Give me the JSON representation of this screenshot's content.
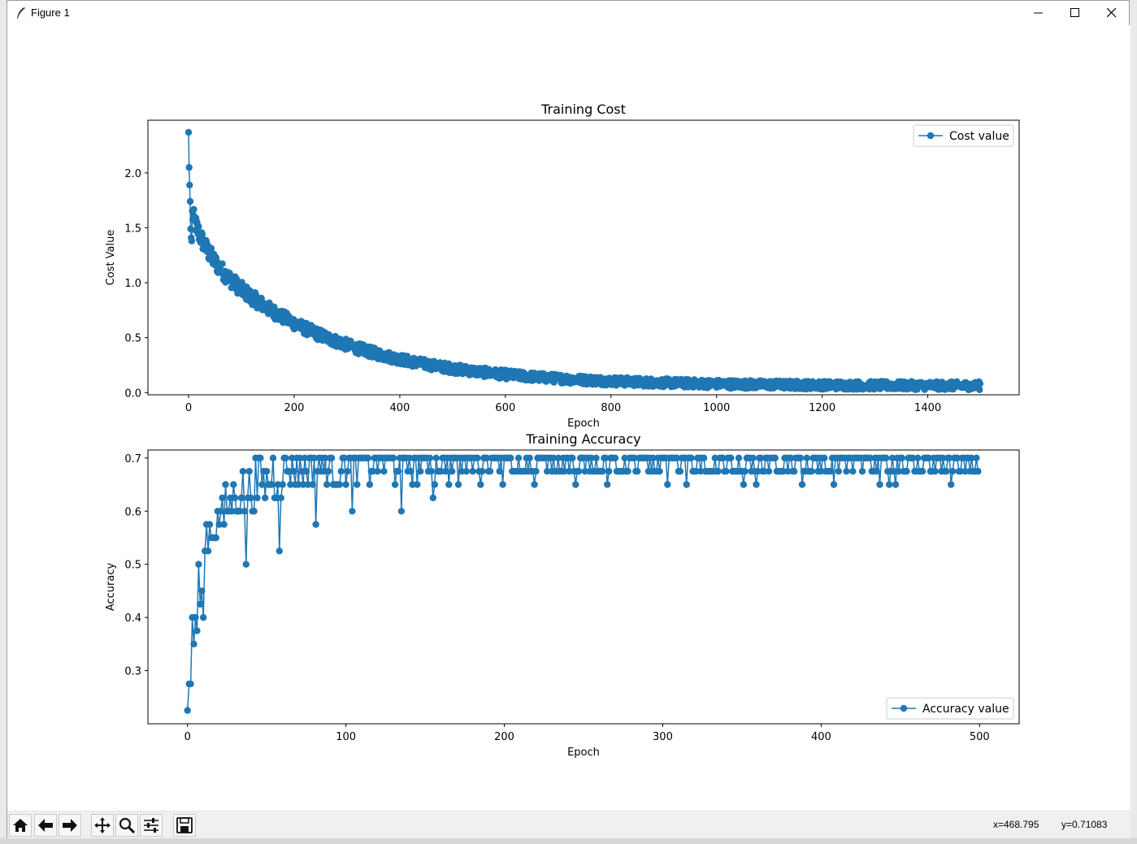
{
  "window": {
    "title": "Figure 1"
  },
  "colors": {
    "series": "#1f77b4",
    "axes": "#000000",
    "background": "#ffffff"
  },
  "chart_data": [
    {
      "type": "line",
      "title": "Training Cost",
      "xlabel": "Epoch",
      "ylabel": "Cost Value",
      "xlim": [
        -77,
        1573
      ],
      "ylim": [
        -0.02,
        2.48
      ],
      "xticks": [
        0,
        200,
        400,
        600,
        800,
        1000,
        1200,
        1400
      ],
      "yticks": [
        0.0,
        0.5,
        1.0,
        1.5,
        2.0
      ],
      "ytick_format": 1,
      "grid": false,
      "legend": "top-right",
      "series": [
        {
          "name": "Cost value",
          "marker": "o",
          "x_range": [
            0,
            1499
          ],
          "start_points": [
            [
              0,
              2.37
            ],
            [
              1,
              2.05
            ],
            [
              2,
              1.89
            ],
            [
              3,
              1.74
            ],
            [
              4,
              1.49
            ],
            [
              5,
              1.41
            ],
            [
              6,
              1.38
            ]
          ],
          "asymptote": 0.06,
          "amplitude": 1.34,
          "decay": 235,
          "noise": 0.035,
          "outliers": [
            [
              117,
              0.83
            ]
          ]
        }
      ]
    },
    {
      "type": "line",
      "title": "Training Accuracy",
      "xlabel": "Epoch",
      "ylabel": "Accuracy",
      "xlim": [
        -25,
        525
      ],
      "ylim": [
        0.2,
        0.715
      ],
      "xticks": [
        0,
        100,
        200,
        300,
        400,
        500
      ],
      "yticks": [
        0.3,
        0.4,
        0.5,
        0.6,
        0.7
      ],
      "ytick_format": 1,
      "grid": false,
      "legend": "bottom-right",
      "series": [
        {
          "name": "Accuracy value",
          "marker": "o",
          "x_range": [
            0,
            499
          ],
          "start_points": [
            [
              0,
              0.225
            ],
            [
              1,
              0.275
            ],
            [
              2,
              0.275
            ],
            [
              3,
              0.4
            ],
            [
              4,
              0.35
            ],
            [
              5,
              0.4
            ],
            [
              6,
              0.375
            ],
            [
              7,
              0.5
            ],
            [
              8,
              0.425
            ],
            [
              9,
              0.45
            ],
            [
              10,
              0.4
            ]
          ],
          "plateau": 0.7,
          "step": 0.025,
          "dips": [
            [
              185,
              0.65
            ],
            [
              199,
              0.65
            ],
            [
              219,
              0.65
            ],
            [
              245,
              0.65
            ],
            [
              265,
              0.65
            ],
            [
              303,
              0.65
            ],
            [
              315,
              0.65
            ],
            [
              351,
              0.65
            ],
            [
              359,
              0.65
            ],
            [
              388,
              0.65
            ],
            [
              408,
              0.65
            ],
            [
              437,
              0.65
            ],
            [
              443,
              0.65
            ],
            [
              447,
              0.65
            ],
            [
              482,
              0.65
            ]
          ],
          "low_points": [
            [
              37,
              0.5
            ],
            [
              58,
              0.525
            ],
            [
              81,
              0.575
            ],
            [
              104,
              0.6
            ],
            [
              135,
              0.6
            ],
            [
              155,
              0.625
            ],
            [
              171,
              0.65
            ]
          ]
        }
      ]
    }
  ],
  "status": {
    "x_readout": "x=468.795",
    "y_readout": "y=0.71083"
  },
  "toolbar": {
    "buttons": [
      "home-icon",
      "back-arrow-icon",
      "forward-arrow-icon",
      "pan-icon",
      "zoom-icon",
      "subplots-config-icon",
      "save-icon"
    ]
  }
}
